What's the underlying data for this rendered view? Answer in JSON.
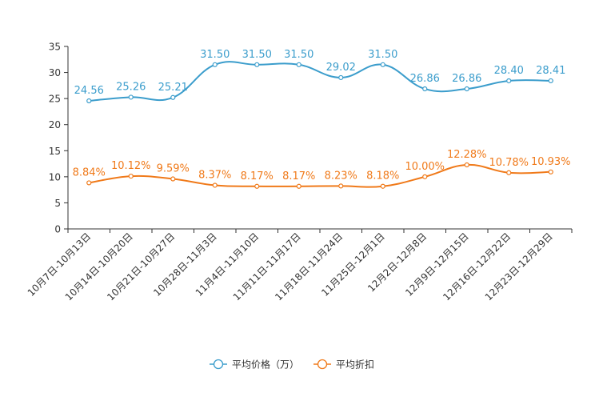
{
  "chart_data": {
    "type": "line",
    "title": "",
    "xlabel": "",
    "ylabel": "",
    "ylim": [
      0,
      35
    ],
    "yticks": [
      0,
      5,
      10,
      15,
      20,
      25,
      30,
      35
    ],
    "grid": false,
    "legend_position": "bottom-center",
    "categories": [
      "10月7日-10月13日",
      "10月14日-10月20日",
      "10月21日-10月27日",
      "10月28日-11月3日",
      "11月4日-11月10日",
      "11月11日-11月17日",
      "11月18日-11月24日",
      "11月25日-12月1日",
      "12月2日-12月8日",
      "12月9日-12月15日",
      "12月16日-12月22日",
      "12月23日-12月29日"
    ],
    "series": [
      {
        "name": "平均价格（万）",
        "color": "#3b9dcc",
        "values": [
          24.56,
          25.26,
          25.21,
          31.5,
          31.5,
          31.5,
          29.02,
          31.5,
          26.86,
          26.86,
          28.4,
          28.41
        ],
        "labels": [
          "24.56",
          "25.26",
          "25.21",
          "31.50",
          "31.50",
          "31.50",
          "29.02",
          "31.50",
          "26.86",
          "26.86",
          "28.40",
          "28.41"
        ]
      },
      {
        "name": "平均折扣",
        "color": "#f07a1a",
        "values": [
          8.84,
          10.12,
          9.59,
          8.37,
          8.17,
          8.17,
          8.23,
          8.18,
          10.0,
          12.28,
          10.78,
          10.93
        ],
        "labels": [
          "8.84%",
          "10.12%",
          "9.59%",
          "8.37%",
          "8.17%",
          "8.17%",
          "8.23%",
          "8.18%",
          "10.00%",
          "12.28%",
          "10.78%",
          "10.93%"
        ]
      }
    ]
  }
}
